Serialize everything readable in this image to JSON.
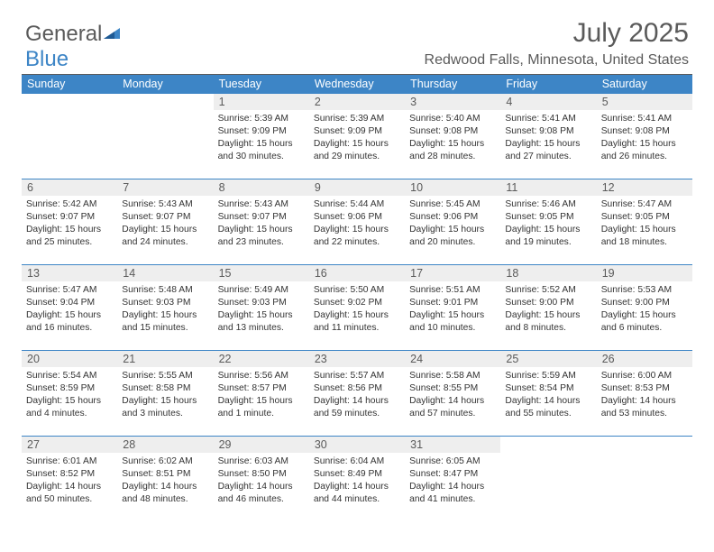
{
  "brand": {
    "part1": "General",
    "part2": "Blue"
  },
  "title": "July 2025",
  "location": "Redwood Falls, Minnesota, United States",
  "colors": {
    "header_bg": "#3d85c6",
    "header_text": "#ffffff",
    "daynum_bg": "#eeeeee",
    "daynum_text": "#5a5a5a",
    "body_text": "#333333",
    "title_text": "#5a5a5a",
    "divider": "#3d85c6"
  },
  "day_labels": [
    "Sunday",
    "Monday",
    "Tuesday",
    "Wednesday",
    "Thursday",
    "Friday",
    "Saturday"
  ],
  "weeks": [
    [
      {
        "n": "",
        "sunrise": "",
        "sunset": "",
        "daylight1": "",
        "daylight2": ""
      },
      {
        "n": "",
        "sunrise": "",
        "sunset": "",
        "daylight1": "",
        "daylight2": ""
      },
      {
        "n": "1",
        "sunrise": "Sunrise: 5:39 AM",
        "sunset": "Sunset: 9:09 PM",
        "daylight1": "Daylight: 15 hours",
        "daylight2": "and 30 minutes."
      },
      {
        "n": "2",
        "sunrise": "Sunrise: 5:39 AM",
        "sunset": "Sunset: 9:09 PM",
        "daylight1": "Daylight: 15 hours",
        "daylight2": "and 29 minutes."
      },
      {
        "n": "3",
        "sunrise": "Sunrise: 5:40 AM",
        "sunset": "Sunset: 9:08 PM",
        "daylight1": "Daylight: 15 hours",
        "daylight2": "and 28 minutes."
      },
      {
        "n": "4",
        "sunrise": "Sunrise: 5:41 AM",
        "sunset": "Sunset: 9:08 PM",
        "daylight1": "Daylight: 15 hours",
        "daylight2": "and 27 minutes."
      },
      {
        "n": "5",
        "sunrise": "Sunrise: 5:41 AM",
        "sunset": "Sunset: 9:08 PM",
        "daylight1": "Daylight: 15 hours",
        "daylight2": "and 26 minutes."
      }
    ],
    [
      {
        "n": "6",
        "sunrise": "Sunrise: 5:42 AM",
        "sunset": "Sunset: 9:07 PM",
        "daylight1": "Daylight: 15 hours",
        "daylight2": "and 25 minutes."
      },
      {
        "n": "7",
        "sunrise": "Sunrise: 5:43 AM",
        "sunset": "Sunset: 9:07 PM",
        "daylight1": "Daylight: 15 hours",
        "daylight2": "and 24 minutes."
      },
      {
        "n": "8",
        "sunrise": "Sunrise: 5:43 AM",
        "sunset": "Sunset: 9:07 PM",
        "daylight1": "Daylight: 15 hours",
        "daylight2": "and 23 minutes."
      },
      {
        "n": "9",
        "sunrise": "Sunrise: 5:44 AM",
        "sunset": "Sunset: 9:06 PM",
        "daylight1": "Daylight: 15 hours",
        "daylight2": "and 22 minutes."
      },
      {
        "n": "10",
        "sunrise": "Sunrise: 5:45 AM",
        "sunset": "Sunset: 9:06 PM",
        "daylight1": "Daylight: 15 hours",
        "daylight2": "and 20 minutes."
      },
      {
        "n": "11",
        "sunrise": "Sunrise: 5:46 AM",
        "sunset": "Sunset: 9:05 PM",
        "daylight1": "Daylight: 15 hours",
        "daylight2": "and 19 minutes."
      },
      {
        "n": "12",
        "sunrise": "Sunrise: 5:47 AM",
        "sunset": "Sunset: 9:05 PM",
        "daylight1": "Daylight: 15 hours",
        "daylight2": "and 18 minutes."
      }
    ],
    [
      {
        "n": "13",
        "sunrise": "Sunrise: 5:47 AM",
        "sunset": "Sunset: 9:04 PM",
        "daylight1": "Daylight: 15 hours",
        "daylight2": "and 16 minutes."
      },
      {
        "n": "14",
        "sunrise": "Sunrise: 5:48 AM",
        "sunset": "Sunset: 9:03 PM",
        "daylight1": "Daylight: 15 hours",
        "daylight2": "and 15 minutes."
      },
      {
        "n": "15",
        "sunrise": "Sunrise: 5:49 AM",
        "sunset": "Sunset: 9:03 PM",
        "daylight1": "Daylight: 15 hours",
        "daylight2": "and 13 minutes."
      },
      {
        "n": "16",
        "sunrise": "Sunrise: 5:50 AM",
        "sunset": "Sunset: 9:02 PM",
        "daylight1": "Daylight: 15 hours",
        "daylight2": "and 11 minutes."
      },
      {
        "n": "17",
        "sunrise": "Sunrise: 5:51 AM",
        "sunset": "Sunset: 9:01 PM",
        "daylight1": "Daylight: 15 hours",
        "daylight2": "and 10 minutes."
      },
      {
        "n": "18",
        "sunrise": "Sunrise: 5:52 AM",
        "sunset": "Sunset: 9:00 PM",
        "daylight1": "Daylight: 15 hours",
        "daylight2": "and 8 minutes."
      },
      {
        "n": "19",
        "sunrise": "Sunrise: 5:53 AM",
        "sunset": "Sunset: 9:00 PM",
        "daylight1": "Daylight: 15 hours",
        "daylight2": "and 6 minutes."
      }
    ],
    [
      {
        "n": "20",
        "sunrise": "Sunrise: 5:54 AM",
        "sunset": "Sunset: 8:59 PM",
        "daylight1": "Daylight: 15 hours",
        "daylight2": "and 4 minutes."
      },
      {
        "n": "21",
        "sunrise": "Sunrise: 5:55 AM",
        "sunset": "Sunset: 8:58 PM",
        "daylight1": "Daylight: 15 hours",
        "daylight2": "and 3 minutes."
      },
      {
        "n": "22",
        "sunrise": "Sunrise: 5:56 AM",
        "sunset": "Sunset: 8:57 PM",
        "daylight1": "Daylight: 15 hours",
        "daylight2": "and 1 minute."
      },
      {
        "n": "23",
        "sunrise": "Sunrise: 5:57 AM",
        "sunset": "Sunset: 8:56 PM",
        "daylight1": "Daylight: 14 hours",
        "daylight2": "and 59 minutes."
      },
      {
        "n": "24",
        "sunrise": "Sunrise: 5:58 AM",
        "sunset": "Sunset: 8:55 PM",
        "daylight1": "Daylight: 14 hours",
        "daylight2": "and 57 minutes."
      },
      {
        "n": "25",
        "sunrise": "Sunrise: 5:59 AM",
        "sunset": "Sunset: 8:54 PM",
        "daylight1": "Daylight: 14 hours",
        "daylight2": "and 55 minutes."
      },
      {
        "n": "26",
        "sunrise": "Sunrise: 6:00 AM",
        "sunset": "Sunset: 8:53 PM",
        "daylight1": "Daylight: 14 hours",
        "daylight2": "and 53 minutes."
      }
    ],
    [
      {
        "n": "27",
        "sunrise": "Sunrise: 6:01 AM",
        "sunset": "Sunset: 8:52 PM",
        "daylight1": "Daylight: 14 hours",
        "daylight2": "and 50 minutes."
      },
      {
        "n": "28",
        "sunrise": "Sunrise: 6:02 AM",
        "sunset": "Sunset: 8:51 PM",
        "daylight1": "Daylight: 14 hours",
        "daylight2": "and 48 minutes."
      },
      {
        "n": "29",
        "sunrise": "Sunrise: 6:03 AM",
        "sunset": "Sunset: 8:50 PM",
        "daylight1": "Daylight: 14 hours",
        "daylight2": "and 46 minutes."
      },
      {
        "n": "30",
        "sunrise": "Sunrise: 6:04 AM",
        "sunset": "Sunset: 8:49 PM",
        "daylight1": "Daylight: 14 hours",
        "daylight2": "and 44 minutes."
      },
      {
        "n": "31",
        "sunrise": "Sunrise: 6:05 AM",
        "sunset": "Sunset: 8:47 PM",
        "daylight1": "Daylight: 14 hours",
        "daylight2": "and 41 minutes."
      },
      {
        "n": "",
        "sunrise": "",
        "sunset": "",
        "daylight1": "",
        "daylight2": ""
      },
      {
        "n": "",
        "sunrise": "",
        "sunset": "",
        "daylight1": "",
        "daylight2": ""
      }
    ]
  ]
}
